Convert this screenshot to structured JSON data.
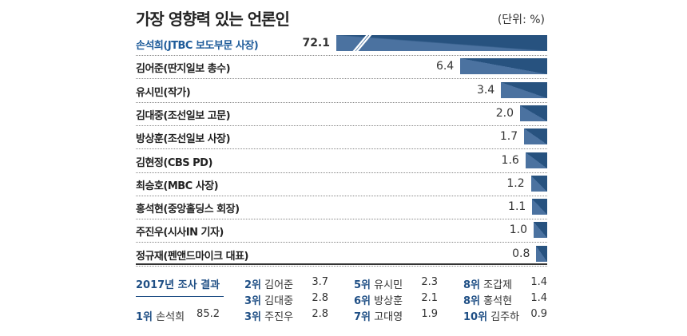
{
  "title": "가장 영향력 있는 언론인",
  "unit": "(단위: %)",
  "chart_data": {
    "type": "bar",
    "title": "가장 영향력 있는 언론인",
    "unit": "(단위: %)",
    "categories": [
      "손석희(JTBC 보도부문 사장)",
      "김어준(딴지일보 총수)",
      "유시민(작가)",
      "김대중(조선일보 고문)",
      "방상훈(조선일보 사장)",
      "김현정(CBS PD)",
      "최승호(MBC 사장)",
      "홍석현(중앙홀딩스 회장)",
      "주진우(시사IN 기자)",
      "정규재(펜앤드마이크 대표)"
    ],
    "values": [
      72.1,
      6.4,
      3.4,
      2.0,
      1.7,
      1.6,
      1.2,
      1.1,
      1.0,
      0.8
    ],
    "value_labels": [
      "72.1",
      "6.4",
      "3.4",
      "2.0",
      "1.7",
      "1.6",
      "1.2",
      "1.1",
      "1.0",
      "0.8"
    ],
    "colors": {
      "bar": "#27527f",
      "bar_light": "#4b72a0",
      "highlight_text": "#1f5c9a"
    }
  },
  "summary": {
    "title": "2017년 조사 결과",
    "entries": [
      {
        "rank": "1위",
        "name": "손석희",
        "value": "85.2"
      },
      {
        "rank": "2위",
        "name": "김어준",
        "value": "3.7"
      },
      {
        "rank": "3위",
        "name": "김대중",
        "value": "2.8"
      },
      {
        "rank": "3위",
        "name": "주진우",
        "value": "2.8"
      },
      {
        "rank": "5위",
        "name": "유시민",
        "value": "2.3"
      },
      {
        "rank": "6위",
        "name": "방상훈",
        "value": "2.1"
      },
      {
        "rank": "7위",
        "name": "고대영",
        "value": "1.9"
      },
      {
        "rank": "8위",
        "name": "조갑제",
        "value": "1.4"
      },
      {
        "rank": "8위",
        "name": "홍석현",
        "value": "1.4"
      },
      {
        "rank": "10위",
        "name": "김주하",
        "value": "0.9"
      }
    ]
  }
}
